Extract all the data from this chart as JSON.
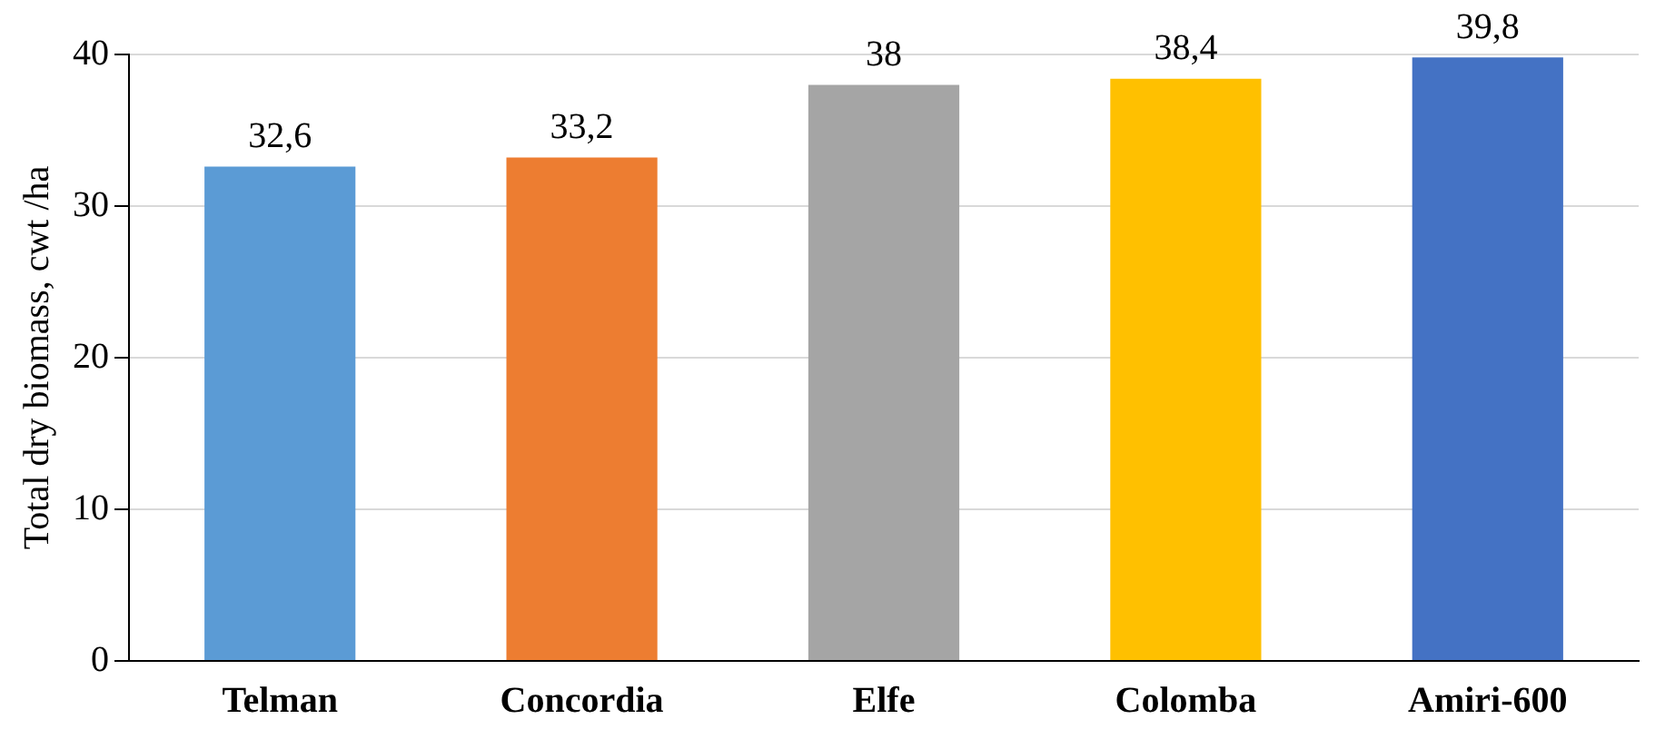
{
  "chart_data": {
    "type": "bar",
    "ylabel": "Total dry biomass, cwt /ha",
    "categories": [
      "Telman",
      "Concordia",
      "Elfe",
      "Colomba",
      "Amiri-600"
    ],
    "values": [
      32.6,
      33.2,
      38,
      38.4,
      39.8
    ],
    "colors": [
      "#5b9bd5",
      "#ed7d31",
      "#a5a5a5",
      "#ffc000",
      "#4472c4"
    ],
    "value_labels": [
      "32,6",
      "33,2",
      "38",
      "38,4",
      "39,8"
    ],
    "ylim": [
      0,
      40
    ],
    "yticks": [
      0,
      10,
      20,
      30,
      40
    ],
    "grid": "y",
    "legend": false
  }
}
